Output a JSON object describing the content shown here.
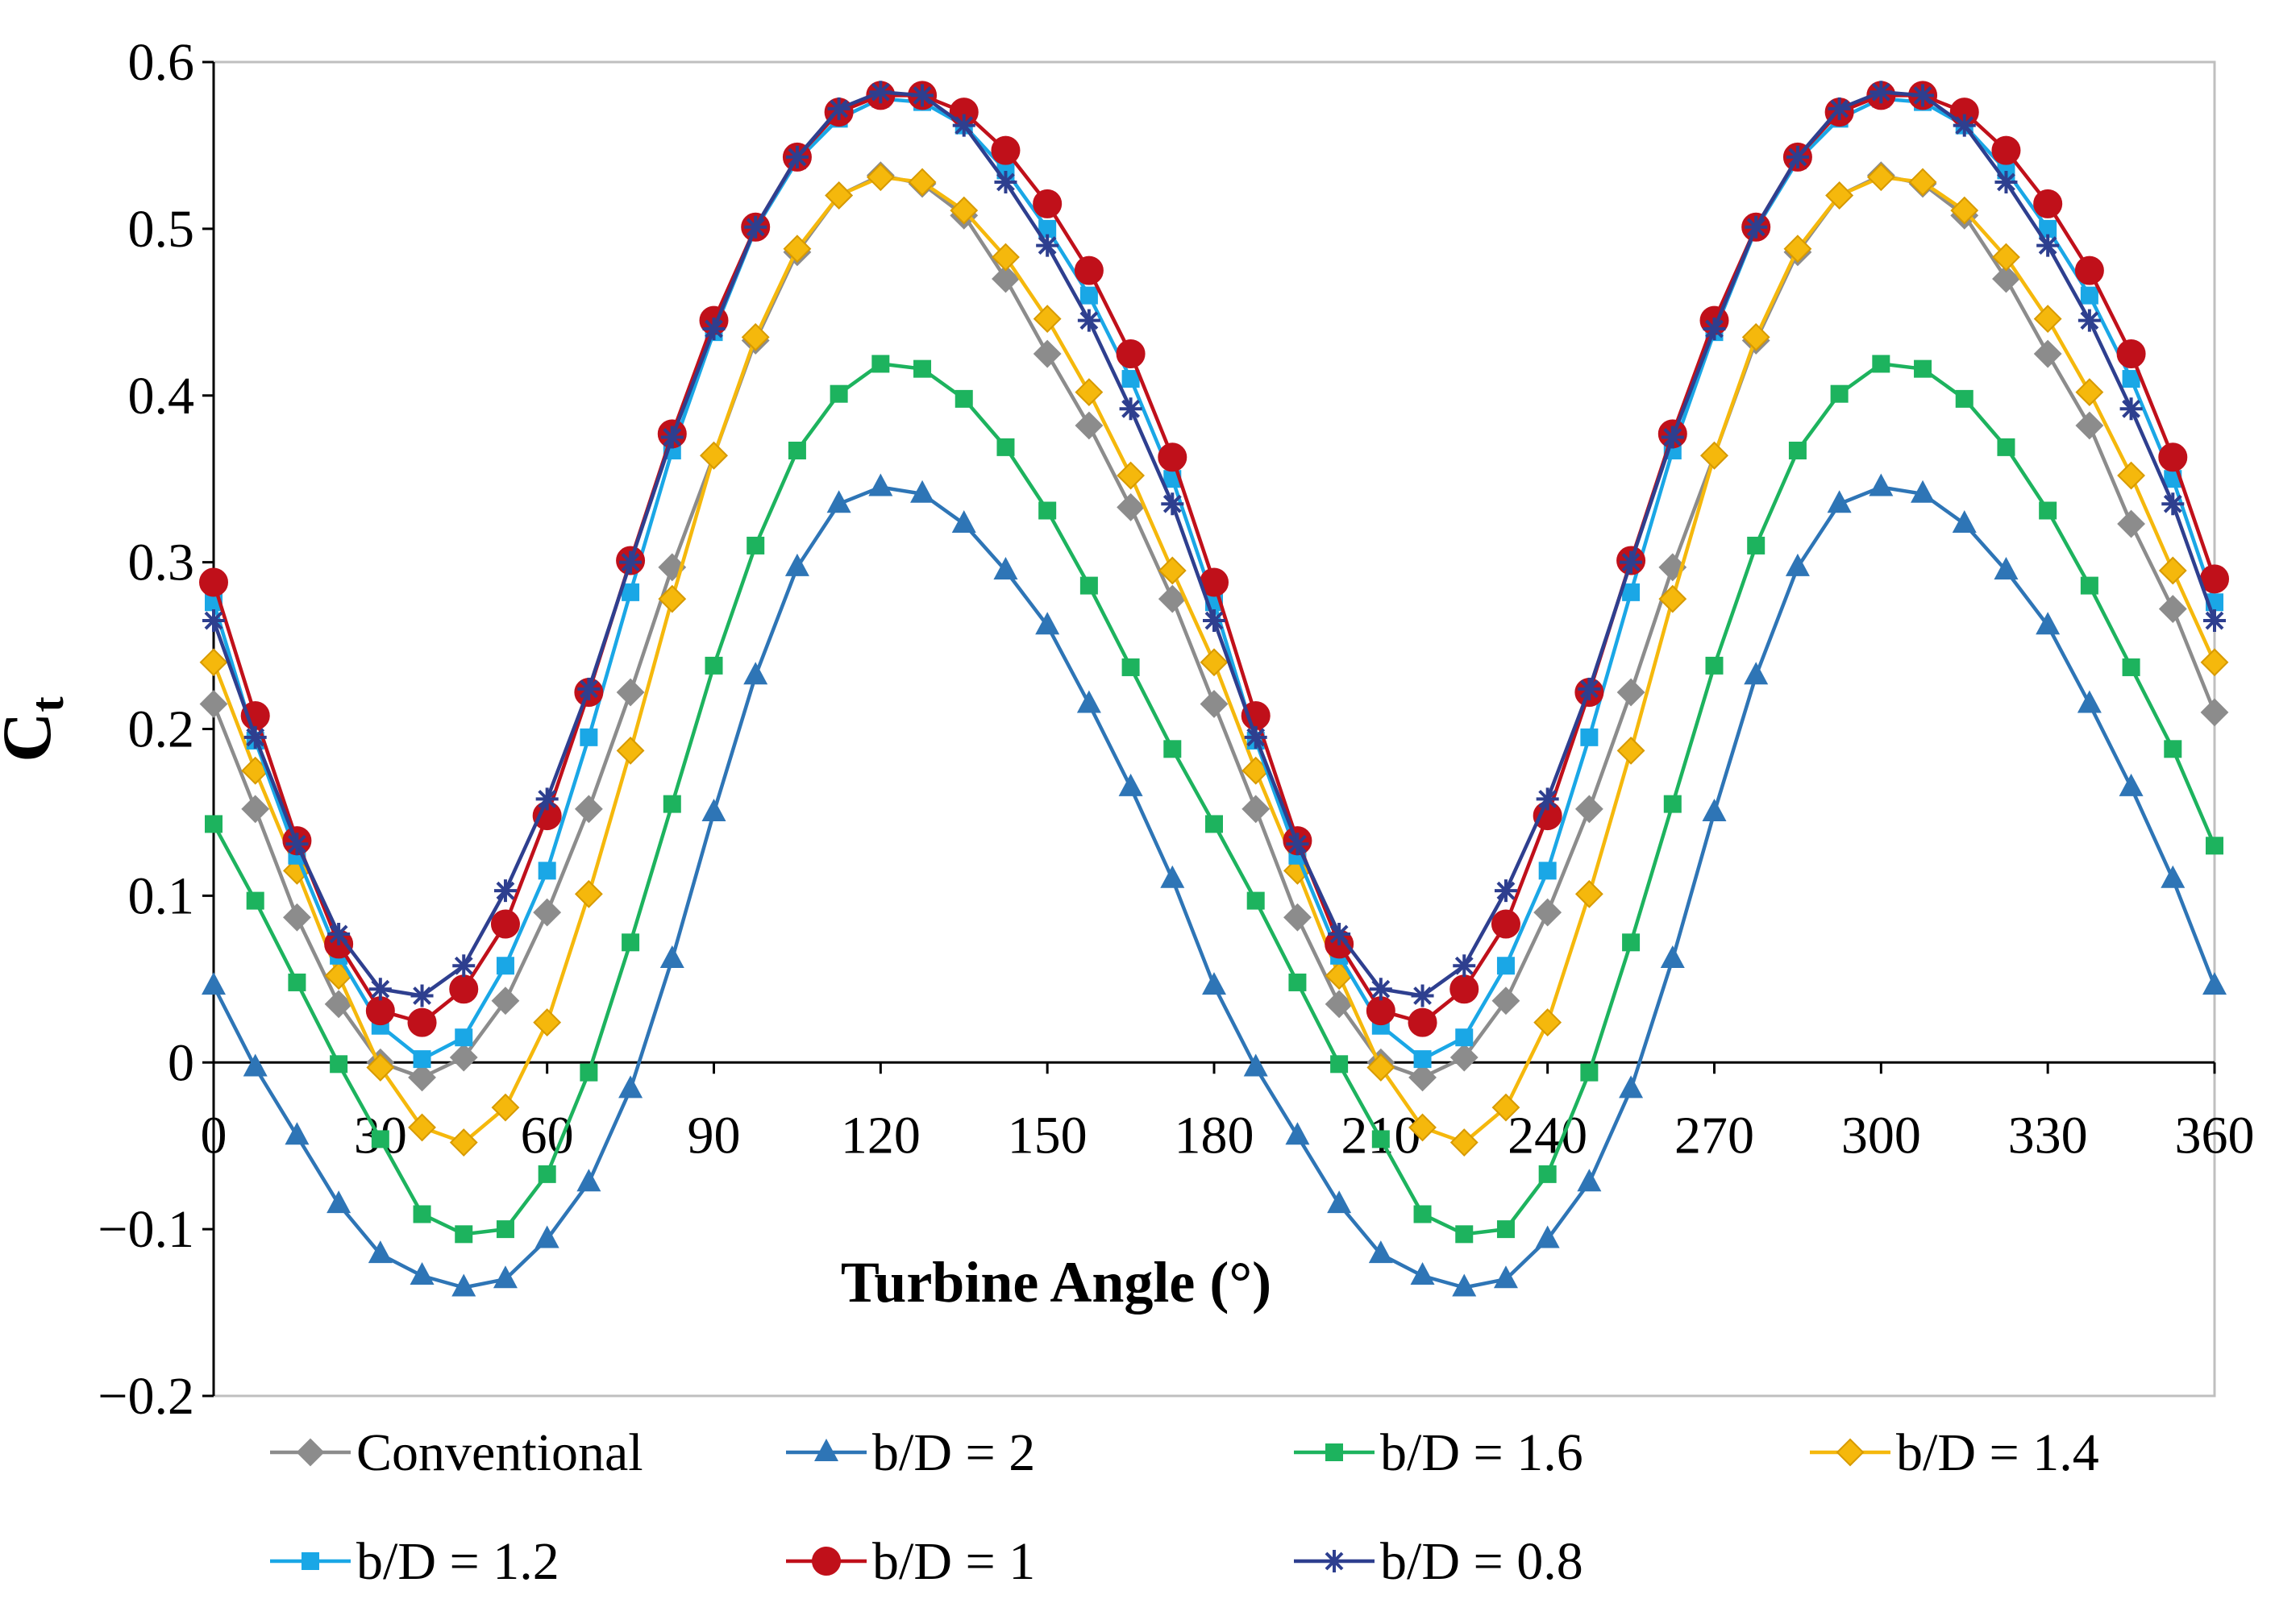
{
  "chart_data": {
    "type": "line",
    "title": "",
    "xlabel": "Turbine Angle (°)",
    "ylabel": "C",
    "ylabel_subscript": "t",
    "xlim": [
      0,
      360
    ],
    "ylim": [
      -0.2,
      0.6
    ],
    "xticks": [
      0,
      30,
      60,
      90,
      120,
      150,
      180,
      210,
      240,
      270,
      300,
      330,
      360
    ],
    "yticks": [
      -0.2,
      -0.1,
      0,
      0.1,
      0.2,
      0.3,
      0.4,
      0.5,
      0.6
    ],
    "ytick_labels": [
      "−0.2",
      "−0.1",
      "0",
      "0.1",
      "0.2",
      "0.3",
      "0.4",
      "0.5",
      "0.6"
    ],
    "grid": false,
    "legend_position": "bottom",
    "x": [
      0,
      7.5,
      15,
      22.5,
      30,
      37.5,
      45,
      52.5,
      60,
      67.5,
      75,
      82.5,
      90,
      97.5,
      105,
      112.5,
      120,
      127.5,
      135,
      142.5,
      150,
      157.5,
      165,
      172.5,
      180,
      187.5,
      195,
      202.5,
      210,
      217.5,
      225,
      232.5,
      240,
      247.5,
      255,
      262.5,
      270,
      277.5,
      285,
      292.5,
      300,
      307.5,
      315,
      322.5,
      330,
      337.5,
      345,
      352.5,
      360
    ],
    "series": [
      {
        "name": "Conventional",
        "color": "#8c8c8c",
        "marker": "diamond",
        "values": [
          0.215,
          0.152,
          0.087,
          0.035,
          0.0,
          -0.009,
          0.003,
          0.037,
          0.09,
          0.152,
          0.222,
          0.297,
          0.364,
          0.433,
          0.486,
          0.52,
          0.532,
          0.527,
          0.508,
          0.47,
          0.425,
          0.382,
          0.333,
          0.278,
          0.215,
          0.152,
          0.087,
          0.035,
          0.0,
          -0.009,
          0.003,
          0.037,
          0.09,
          0.152,
          0.222,
          0.297,
          0.364,
          0.433,
          0.486,
          0.52,
          0.532,
          0.527,
          0.508,
          0.47,
          0.425,
          0.382,
          0.323,
          0.272,
          0.21
        ]
      },
      {
        "name": "b/D = 2",
        "color": "#2e75b6",
        "marker": "triangle",
        "values": [
          0.046,
          -0.003,
          -0.044,
          -0.085,
          -0.115,
          -0.128,
          -0.135,
          -0.13,
          -0.106,
          -0.072,
          -0.016,
          0.062,
          0.15,
          0.232,
          0.297,
          0.335,
          0.345,
          0.341,
          0.323,
          0.295,
          0.262,
          0.215,
          0.165,
          0.11,
          0.046,
          -0.003,
          -0.044,
          -0.085,
          -0.115,
          -0.128,
          -0.135,
          -0.13,
          -0.106,
          -0.072,
          -0.016,
          0.062,
          0.15,
          0.232,
          0.297,
          0.335,
          0.345,
          0.341,
          0.323,
          0.295,
          0.262,
          0.215,
          0.165,
          0.11,
          0.046
        ]
      },
      {
        "name": "b/D = 1.6",
        "color": "#1db35e",
        "marker": "square",
        "values": [
          0.143,
          0.097,
          0.048,
          -0.001,
          -0.046,
          -0.091,
          -0.103,
          -0.1,
          -0.067,
          -0.006,
          0.072,
          0.155,
          0.238,
          0.31,
          0.367,
          0.401,
          0.419,
          0.416,
          0.398,
          0.369,
          0.331,
          0.286,
          0.237,
          0.188,
          0.143,
          0.097,
          0.048,
          -0.001,
          -0.046,
          -0.091,
          -0.103,
          -0.1,
          -0.067,
          -0.006,
          0.072,
          0.155,
          0.238,
          0.31,
          0.367,
          0.401,
          0.419,
          0.416,
          0.398,
          0.369,
          0.331,
          0.286,
          0.237,
          0.188,
          0.13
        ]
      },
      {
        "name": "b/D = 1.4",
        "color": "#f5b80c",
        "marker": "diamond",
        "values": [
          0.24,
          0.175,
          0.115,
          0.052,
          -0.003,
          -0.039,
          -0.048,
          -0.027,
          0.024,
          0.101,
          0.187,
          0.278,
          0.364,
          0.435,
          0.488,
          0.52,
          0.531,
          0.528,
          0.511,
          0.483,
          0.446,
          0.402,
          0.352,
          0.295,
          0.24,
          0.175,
          0.115,
          0.052,
          -0.003,
          -0.039,
          -0.048,
          -0.027,
          0.024,
          0.101,
          0.187,
          0.278,
          0.364,
          0.435,
          0.488,
          0.52,
          0.531,
          0.528,
          0.511,
          0.483,
          0.446,
          0.402,
          0.352,
          0.295,
          0.24
        ]
      },
      {
        "name": "b/D = 1.2",
        "color": "#1aa7e6",
        "marker": "square",
        "values": [
          0.276,
          0.193,
          0.124,
          0.064,
          0.022,
          0.002,
          0.015,
          0.058,
          0.115,
          0.195,
          0.282,
          0.367,
          0.438,
          0.5,
          0.541,
          0.566,
          0.578,
          0.576,
          0.562,
          0.535,
          0.5,
          0.46,
          0.41,
          0.35,
          0.276,
          0.193,
          0.124,
          0.064,
          0.022,
          0.002,
          0.015,
          0.058,
          0.115,
          0.195,
          0.282,
          0.367,
          0.438,
          0.5,
          0.541,
          0.566,
          0.578,
          0.576,
          0.562,
          0.535,
          0.5,
          0.46,
          0.41,
          0.35,
          0.276
        ]
      },
      {
        "name": "b/D = 1",
        "color": "#c0101a",
        "marker": "circle",
        "values": [
          0.288,
          0.208,
          0.133,
          0.071,
          0.031,
          0.024,
          0.044,
          0.083,
          0.148,
          0.222,
          0.301,
          0.377,
          0.445,
          0.501,
          0.543,
          0.57,
          0.58,
          0.58,
          0.57,
          0.547,
          0.515,
          0.475,
          0.425,
          0.363,
          0.288,
          0.208,
          0.133,
          0.071,
          0.031,
          0.024,
          0.044,
          0.083,
          0.148,
          0.222,
          0.301,
          0.377,
          0.445,
          0.501,
          0.543,
          0.57,
          0.58,
          0.58,
          0.57,
          0.547,
          0.515,
          0.475,
          0.425,
          0.363,
          0.29
        ]
      },
      {
        "name": "b/D = 0.8",
        "color": "#2e3f8f",
        "marker": "star",
        "values": [
          0.265,
          0.195,
          0.131,
          0.077,
          0.044,
          0.04,
          0.058,
          0.103,
          0.158,
          0.224,
          0.3,
          0.375,
          0.44,
          0.501,
          0.543,
          0.572,
          0.582,
          0.58,
          0.562,
          0.528,
          0.49,
          0.445,
          0.392,
          0.335,
          0.265,
          0.195,
          0.131,
          0.077,
          0.044,
          0.04,
          0.058,
          0.103,
          0.158,
          0.224,
          0.3,
          0.375,
          0.44,
          0.501,
          0.543,
          0.572,
          0.582,
          0.58,
          0.562,
          0.528,
          0.49,
          0.445,
          0.392,
          0.335,
          0.265
        ]
      }
    ]
  }
}
